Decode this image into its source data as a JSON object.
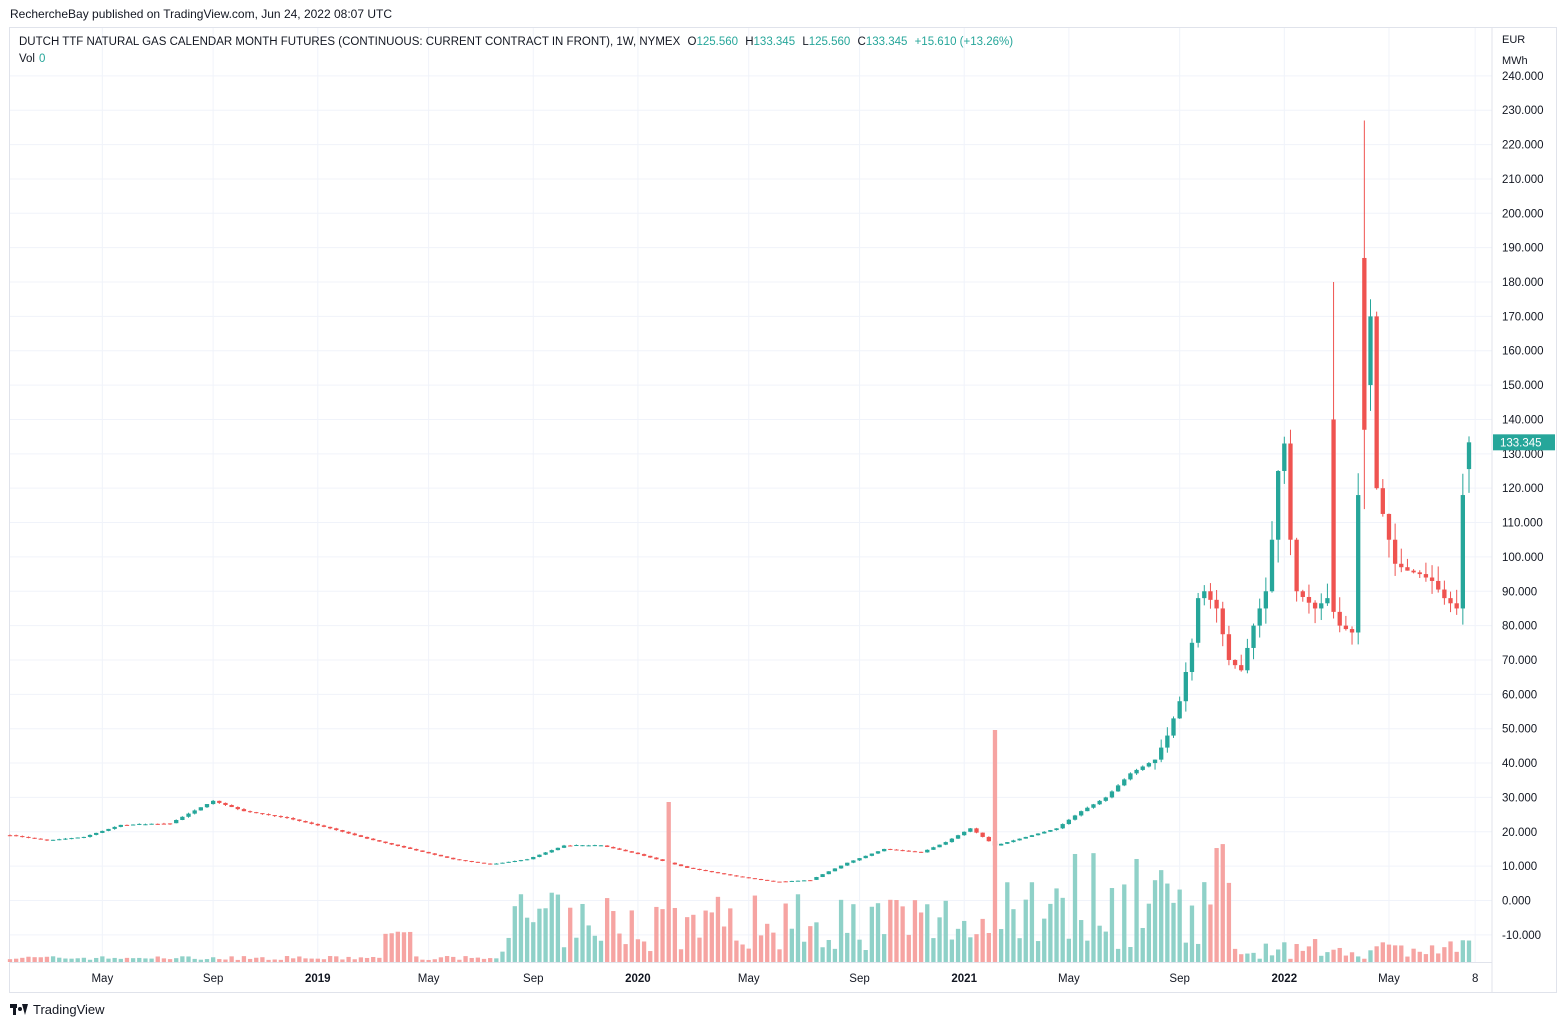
{
  "header": {
    "published": "RechercheBay published on TradingView.com, Jun 24, 2022 08:07 UTC"
  },
  "legend": {
    "symbol": "DUTCH TTF NATURAL GAS CALENDAR MONTH FUTURES (CONTINUOUS: CURRENT CONTRACT IN FRONT), 1W, NYMEX",
    "o_label": "O",
    "o_value": "125.560",
    "h_label": "H",
    "h_value": "133.345",
    "l_label": "L",
    "l_value": "125.560",
    "c_label": "C",
    "c_value": "133.345",
    "change": "+15.610 (+13.26%)",
    "vol_label": "Vol",
    "vol_value": "0"
  },
  "axis": {
    "unit_top": "EUR",
    "unit_bottom": "MWh"
  },
  "footer": {
    "brand": "TradingView"
  },
  "colors": {
    "up": "#26a69a",
    "down": "#ef5350",
    "up_vol": "#8fd1c8",
    "down_vol": "#f6a4a2",
    "grid": "#f0f3fa"
  },
  "chart_data": {
    "type": "candlestick",
    "currency": "EUR",
    "unit": "MWh",
    "ylim": [
      -18,
      243
    ],
    "y_ticks": [
      -10,
      0,
      10,
      20,
      30,
      40,
      50,
      60,
      70,
      80,
      90,
      100,
      110,
      120,
      130,
      140,
      150,
      160,
      170,
      180,
      190,
      200,
      210,
      220,
      230,
      240
    ],
    "y_tick_labels": [
      "-10.000",
      "0.000",
      "10.000",
      "20.000",
      "30.000",
      "40.000",
      "50.000",
      "60.000",
      "70.000",
      "80.000",
      "90.000",
      "100.000",
      "110.000",
      "120.000",
      "130.000",
      "140.000",
      "150.000",
      "160.000",
      "170.000",
      "180.000",
      "190.000",
      "200.000",
      "210.000",
      "220.000",
      "230.000",
      "240.000"
    ],
    "x_tick_labels": [
      {
        "week": 15,
        "label": "May"
      },
      {
        "week": 33,
        "label": "Sep"
      },
      {
        "week": 50,
        "label": "2019"
      },
      {
        "week": 68,
        "label": "May"
      },
      {
        "week": 85,
        "label": "Sep"
      },
      {
        "week": 102,
        "label": "2020"
      },
      {
        "week": 120,
        "label": "May"
      },
      {
        "week": 138,
        "label": "Sep"
      },
      {
        "week": 155,
        "label": "2021"
      },
      {
        "week": 172,
        "label": "May"
      },
      {
        "week": 190,
        "label": "Sep"
      },
      {
        "week": 207,
        "label": "2022"
      },
      {
        "week": 224,
        "label": "May"
      },
      {
        "week": 238,
        "label": "8"
      }
    ],
    "x_range": [
      0,
      243
    ],
    "keypoints": [
      [
        0,
        19
      ],
      [
        6,
        17.5
      ],
      [
        12,
        18.5
      ],
      [
        18,
        22
      ],
      [
        26,
        22.5
      ],
      [
        33,
        29
      ],
      [
        38,
        26
      ],
      [
        45,
        24
      ],
      [
        52,
        21
      ],
      [
        58,
        18
      ],
      [
        65,
        15
      ],
      [
        72,
        12
      ],
      [
        78,
        10.5
      ],
      [
        84,
        12
      ],
      [
        90,
        16
      ],
      [
        96,
        16
      ],
      [
        102,
        13.5
      ],
      [
        110,
        9.5
      ],
      [
        118,
        7
      ],
      [
        124,
        5.5
      ],
      [
        130,
        6
      ],
      [
        136,
        11
      ],
      [
        142,
        15
      ],
      [
        148,
        14
      ],
      [
        152,
        17
      ],
      [
        156,
        21
      ],
      [
        160,
        16
      ],
      [
        166,
        19
      ],
      [
        170,
        21
      ],
      [
        174,
        26
      ],
      [
        178,
        30
      ],
      [
        182,
        37
      ],
      [
        186,
        41
      ],
      [
        188,
        48
      ],
      [
        190,
        58
      ],
      [
        192,
        75
      ],
      [
        193,
        88
      ],
      [
        194,
        90
      ],
      [
        196,
        85
      ],
      [
        198,
        70
      ],
      [
        200,
        67
      ],
      [
        202,
        80
      ],
      [
        204,
        90
      ],
      [
        205,
        105
      ],
      [
        206,
        125
      ],
      [
        207,
        133
      ],
      [
        208,
        105
      ],
      [
        209,
        90
      ],
      [
        212,
        85
      ],
      [
        214,
        88
      ],
      [
        216,
        80
      ],
      [
        218,
        78
      ],
      [
        219,
        118
      ],
      [
        220,
        150
      ],
      [
        221,
        170
      ],
      [
        222,
        120
      ],
      [
        224,
        105
      ],
      [
        225,
        98
      ],
      [
        227,
        96
      ],
      [
        229,
        95
      ],
      [
        231,
        93
      ],
      [
        233,
        88
      ],
      [
        235,
        85
      ],
      [
        236,
        118
      ],
      [
        237,
        133.345
      ]
    ],
    "markers": [
      {
        "week": 215,
        "high": 180
      },
      {
        "week": 220,
        "high": 227
      }
    ],
    "last": {
      "open": 125.56,
      "high": 133.345,
      "low": 125.56,
      "close": 133.345
    }
  }
}
